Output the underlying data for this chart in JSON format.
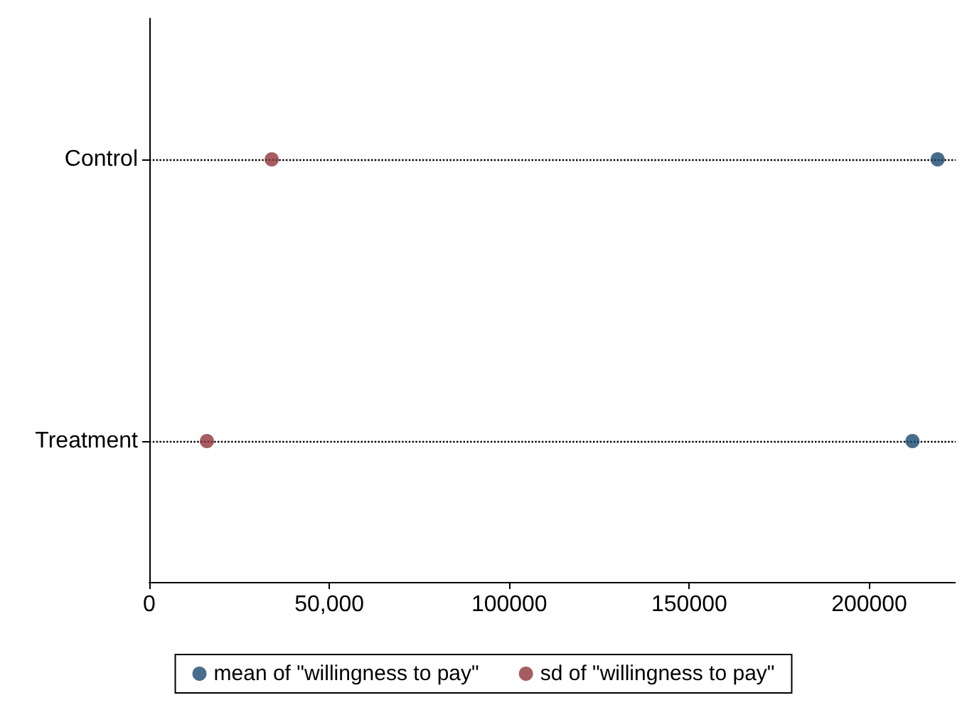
{
  "chart_data": {
    "type": "scatter",
    "orientation": "horizontal",
    "categories": [
      "Control",
      "Treatment"
    ],
    "series": [
      {
        "name": "mean of \"willingness to pay\"",
        "color": "#1a476f",
        "values": [
          219000,
          212000
        ]
      },
      {
        "name": "sd of \"willingness to pay\"",
        "color": "#90353b",
        "values": [
          34000,
          16000
        ]
      }
    ],
    "xlim": [
      0,
      224000
    ],
    "xticks": [
      0,
      {
        "value": 50000,
        "label": "50,000"
      },
      100000,
      150000,
      200000
    ],
    "grid": "y",
    "legend": "bottom",
    "marker": "circle"
  }
}
